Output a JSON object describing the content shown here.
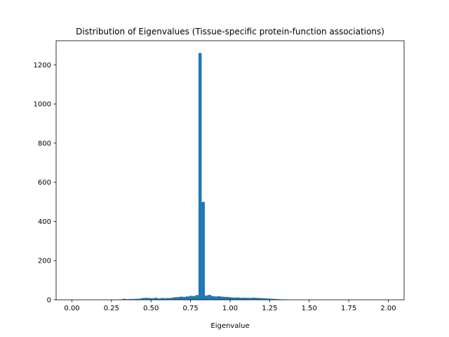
{
  "chart_data": {
    "type": "bar",
    "title": "Distribution of Eigenvalues (Tissue-specific protein-function associations)",
    "xlabel": "Eigenvalue",
    "ylabel": "",
    "xlim": [
      -0.1,
      2.1
    ],
    "ylim": [
      0,
      1323
    ],
    "bar_color": "#1f77b4",
    "x_ticks": [
      {
        "value": 0.0,
        "label": "0.00"
      },
      {
        "value": 0.25,
        "label": "0.25"
      },
      {
        "value": 0.5,
        "label": "0.50"
      },
      {
        "value": 0.75,
        "label": "0.75"
      },
      {
        "value": 1.0,
        "label": "1.00"
      },
      {
        "value": 1.25,
        "label": "1.25"
      },
      {
        "value": 1.5,
        "label": "1.50"
      },
      {
        "value": 1.75,
        "label": "1.75"
      },
      {
        "value": 2.0,
        "label": "2.00"
      }
    ],
    "y_ticks": [
      {
        "value": 0,
        "label": "0"
      },
      {
        "value": 200,
        "label": "200"
      },
      {
        "value": 400,
        "label": "400"
      },
      {
        "value": 600,
        "label": "600"
      },
      {
        "value": 800,
        "label": "800"
      },
      {
        "value": 1000,
        "label": "1000"
      },
      {
        "value": 1200,
        "label": "1200"
      }
    ],
    "bin_start": 0.0,
    "bin_width": 0.02,
    "values": [
      0,
      0,
      0,
      0,
      0,
      0,
      0,
      0,
      0,
      0,
      0,
      0,
      0,
      0,
      1,
      2,
      5,
      3,
      4,
      4,
      5,
      6,
      9,
      10,
      9,
      8,
      10,
      7,
      9,
      8,
      9,
      10,
      13,
      14,
      16,
      15,
      17,
      20,
      19,
      24,
      1260,
      500,
      22,
      25,
      19,
      17,
      18,
      16,
      15,
      14,
      12,
      11,
      12,
      10,
      11,
      10,
      10,
      11,
      10,
      9,
      8,
      7,
      6,
      5,
      4,
      3,
      2,
      2,
      1,
      0,
      0,
      0,
      0,
      0,
      0,
      0,
      0,
      0,
      0,
      0
    ],
    "grid": false
  }
}
